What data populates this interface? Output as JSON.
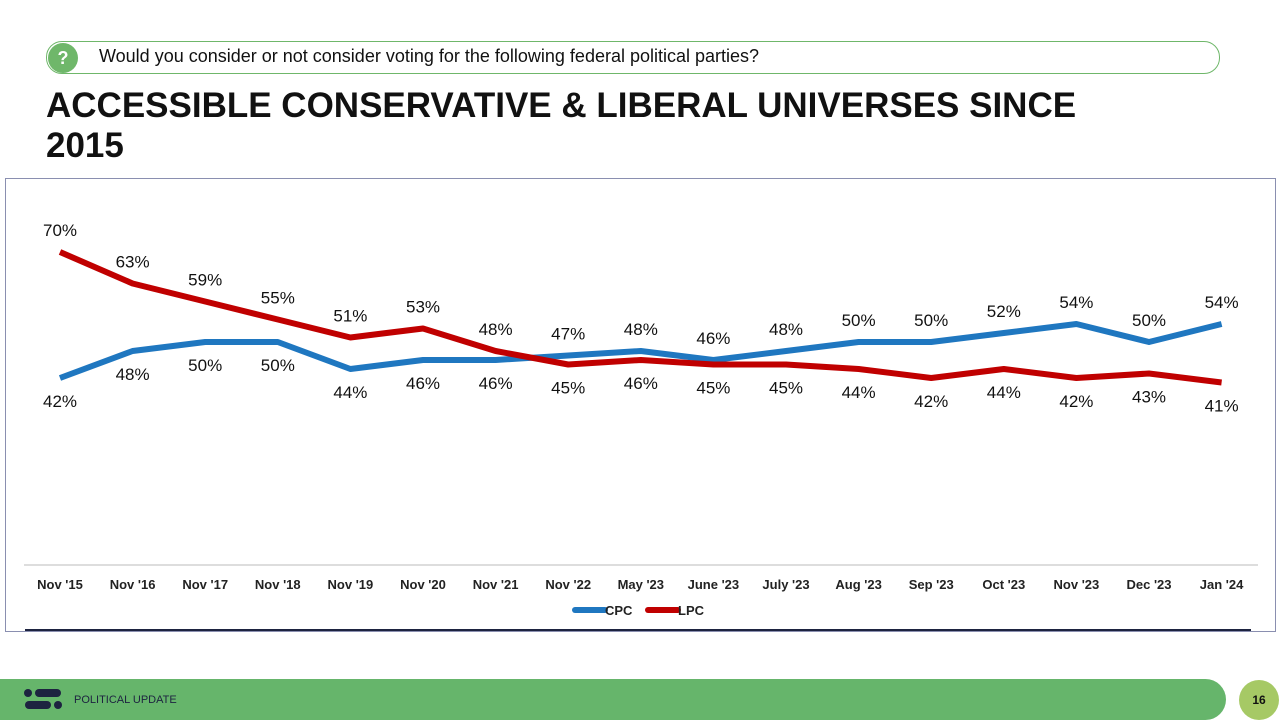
{
  "question": {
    "icon": "question-bubble-icon",
    "text": "Would you consider or not consider voting for the following federal political parties?"
  },
  "title": "ACCESSIBLE CONSERVATIVE & LIBERAL UNIVERSES SINCE 2015",
  "footer": {
    "label": "POLITICAL UPDATE",
    "page": "16"
  },
  "colors": {
    "CPC": "#1f77c0",
    "LPC": "#c00000",
    "accent": "#66b56b"
  },
  "chart_data": {
    "type": "line",
    "categories": [
      "Nov '15",
      "Nov '16",
      "Nov '17",
      "Nov '18",
      "Nov '19",
      "Nov '20",
      "Nov '21",
      "Nov '22",
      "May '23",
      "June '23",
      "July '23",
      "Aug '23",
      "Sep '23",
      "Oct '23",
      "Nov '23",
      "Dec '23",
      "Jan '24"
    ],
    "series": [
      {
        "name": "CPC",
        "values": [
          42,
          48,
          50,
          50,
          44,
          46,
          46,
          47,
          48,
          46,
          48,
          50,
          50,
          52,
          54,
          50,
          54
        ]
      },
      {
        "name": "LPC",
        "values": [
          70,
          63,
          59,
          55,
          51,
          53,
          48,
          45,
          46,
          45,
          45,
          44,
          42,
          44,
          42,
          43,
          41
        ]
      }
    ],
    "value_suffix": "%",
    "ylim": [
      0,
      80
    ],
    "grid": false,
    "legend": "bottom"
  }
}
